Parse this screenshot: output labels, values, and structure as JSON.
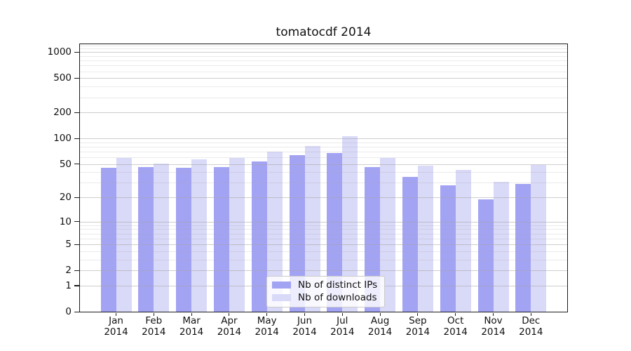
{
  "chart_data": {
    "type": "bar",
    "title": "tomatocdf 2014",
    "categories": [
      "Jan",
      "Feb",
      "Mar",
      "Apr",
      "May",
      "Jun",
      "Jul",
      "Aug",
      "Sep",
      "Oct",
      "Nov",
      "Dec"
    ],
    "category_year": "2014",
    "series": [
      {
        "name": "Nb of distinct IPs",
        "color": "#a3a3f3",
        "values": [
          45,
          46,
          45,
          46,
          54,
          64,
          67,
          46,
          35,
          28,
          19,
          29
        ]
      },
      {
        "name": "Nb of downloads",
        "color": "#d9d9f8",
        "values": [
          59,
          51,
          57,
          59,
          70,
          81,
          105,
          59,
          48,
          43,
          31,
          49
        ]
      }
    ],
    "yscale": "log1p",
    "ylim": [
      0,
      1260
    ],
    "y_major_ticks": [
      0,
      1,
      2,
      5,
      10,
      20,
      50,
      100,
      200,
      500,
      1000
    ],
    "y_minor_ticks": [
      3,
      4,
      6,
      7,
      8,
      9,
      30,
      40,
      60,
      70,
      80,
      90,
      300,
      400,
      600,
      700,
      800,
      900,
      1100,
      1200
    ],
    "grid": true,
    "legend_position": "lower center",
    "xlabel": "",
    "ylabel": ""
  },
  "colors": {
    "background": "#ffffff",
    "spine": "#1a1a1a",
    "grid_major": "#cfcfcf",
    "grid_minor": "#ebebeb",
    "text": "#111111"
  }
}
